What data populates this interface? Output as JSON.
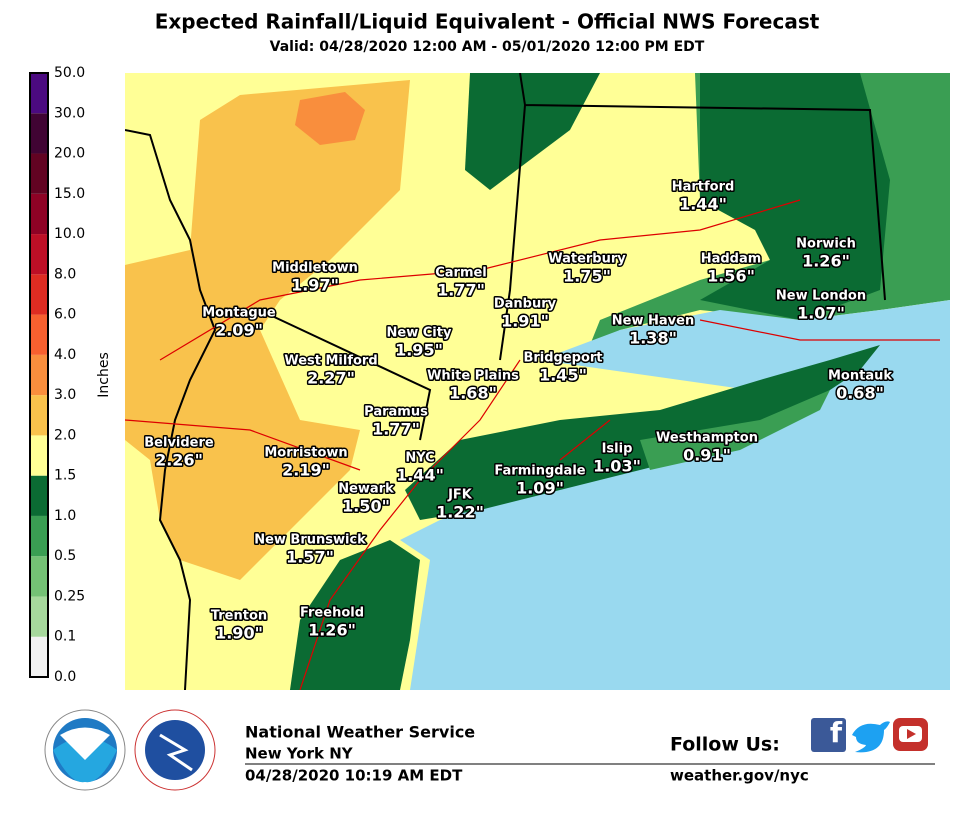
{
  "header": {
    "title": "Expected Rainfall/Liquid Equivalent - Official NWS Forecast",
    "subtitle": "Valid: 04/28/2020 12:00 AM - 05/01/2020 12:00 PM EDT"
  },
  "legend": {
    "axis_label": "Inches",
    "ticks": [
      "0.0",
      "0.1",
      "0.25",
      "0.5",
      "1.0",
      "1.5",
      "2.0",
      "3.0",
      "4.0",
      "6.0",
      "8.0",
      "10.0",
      "15.0",
      "20.0",
      "30.0",
      "50.0"
    ],
    "colors": [
      "#f2f2f2",
      "#a6d89c",
      "#74c175",
      "#3a9e53",
      "#0b6b33",
      "#ffff96",
      "#f9c24c",
      "#f98e3d",
      "#f7602f",
      "#de2c22",
      "#bd0f26",
      "#8e0225",
      "#620322",
      "#400433",
      "#4b0a80"
    ]
  },
  "map": {
    "cities": [
      {
        "name": "Middletown",
        "value": "1.97\""
      },
      {
        "name": "Carmel",
        "value": "1.77\""
      },
      {
        "name": "Waterbury",
        "value": "1.75\""
      },
      {
        "name": "Hartford",
        "value": "1.44\""
      },
      {
        "name": "Haddam",
        "value": "1.56\""
      },
      {
        "name": "Norwich",
        "value": "1.26\""
      },
      {
        "name": "New London",
        "value": "1.07\""
      },
      {
        "name": "Montague",
        "value": "2.09\""
      },
      {
        "name": "Danbury",
        "value": "1.91\""
      },
      {
        "name": "New City",
        "value": "1.95\""
      },
      {
        "name": "New Haven",
        "value": "1.38\""
      },
      {
        "name": "Bridgeport",
        "value": "1.45\""
      },
      {
        "name": "West Milford",
        "value": "2.27\""
      },
      {
        "name": "White Plains",
        "value": "1.68\""
      },
      {
        "name": "Montauk",
        "value": "0.68\""
      },
      {
        "name": "Paramus",
        "value": "1.77\""
      },
      {
        "name": "Belvidere",
        "value": "2.26\""
      },
      {
        "name": "Morristown",
        "value": "2.19\""
      },
      {
        "name": "NYC",
        "value": "1.44\""
      },
      {
        "name": "Islip",
        "value": "1.03\""
      },
      {
        "name": "Westhampton",
        "value": "0.91\""
      },
      {
        "name": "Farmingdale",
        "value": "1.09\""
      },
      {
        "name": "Newark",
        "value": "1.50\""
      },
      {
        "name": "JFK",
        "value": "1.22\""
      },
      {
        "name": "New Brunswick",
        "value": "1.57\""
      },
      {
        "name": "Trenton",
        "value": "1.90\""
      },
      {
        "name": "Freehold",
        "value": "1.26\""
      }
    ]
  },
  "footer": {
    "office": "National Weather Service",
    "location": "New York NY",
    "issued": "04/28/2020 10:19 AM EDT",
    "follow": "Follow Us:",
    "url": "weather.gov/nyc"
  }
}
